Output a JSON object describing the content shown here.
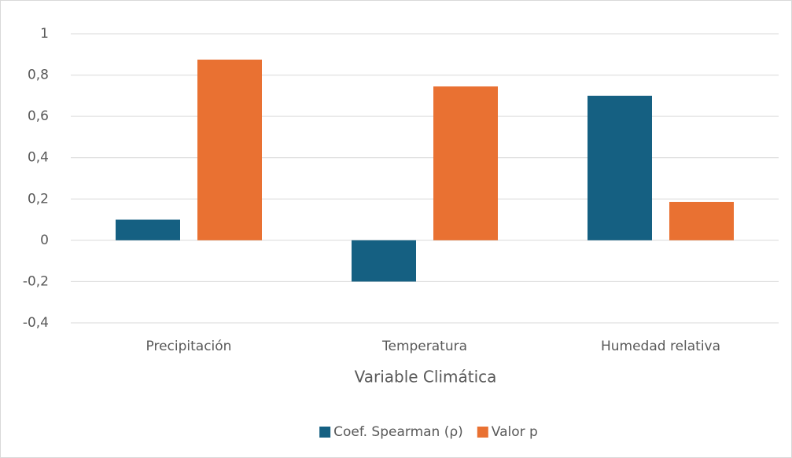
{
  "chart_data": {
    "type": "bar",
    "x_label": "Variable Climática",
    "categories": [
      "Precipitación",
      "Temperatura",
      "Humedad relativa"
    ],
    "series": [
      {
        "name": "Coef. Spearman (ρ)",
        "color": "#156082",
        "values": [
          0.1,
          -0.2,
          0.7
        ]
      },
      {
        "name": "Valor p",
        "color": "#e97132",
        "values": [
          0.875,
          0.745,
          0.186
        ]
      }
    ],
    "ylim": [
      -0.4,
      1
    ],
    "yticks": [
      {
        "value": -0.4,
        "label": "-0,4"
      },
      {
        "value": -0.2,
        "label": "-0,2"
      },
      0,
      {
        "value": 0.2,
        "label": "0,2"
      },
      {
        "value": 0.4,
        "label": "0,4"
      },
      {
        "value": 0.6,
        "label": "0,6"
      },
      {
        "value": 0.8,
        "label": "0,8"
      },
      1
    ],
    "grid": true,
    "legend": "bottom"
  }
}
